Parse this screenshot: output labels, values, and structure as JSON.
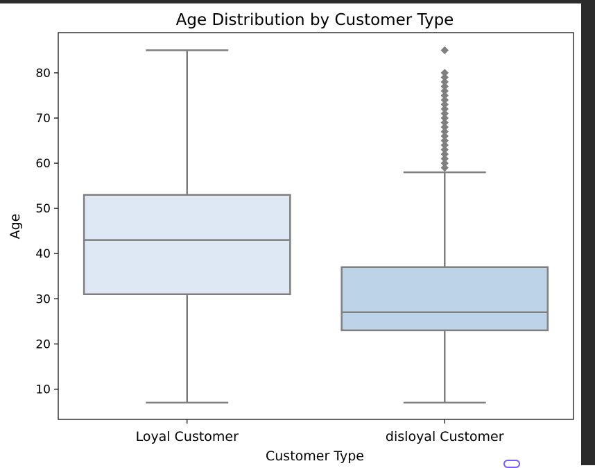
{
  "chart_data": {
    "type": "box",
    "title": "Age Distribution by Customer Type",
    "xlabel": "Customer Type",
    "ylabel": "Age",
    "ylim": [
      3.3,
      88.9
    ],
    "yticks": [
      10,
      20,
      30,
      40,
      50,
      60,
      70,
      80
    ],
    "grid": false,
    "categories": [
      "Loyal Customer",
      "disloyal Customer"
    ],
    "boxes": [
      {
        "category": "Loyal Customer",
        "whisker_low": 7,
        "q1": 31,
        "median": 43,
        "q3": 53,
        "whisker_high": 85,
        "outliers": [],
        "color": "#dde8f4"
      },
      {
        "category": "disloyal Customer",
        "whisker_low": 7,
        "q1": 23,
        "median": 27,
        "q3": 37,
        "whisker_high": 58,
        "outliers": [
          59,
          60,
          61,
          62,
          63,
          64,
          65,
          66,
          67,
          68,
          69,
          70,
          71,
          72,
          73,
          74,
          75,
          76,
          77,
          78,
          79,
          80,
          85
        ],
        "color": "#bdd4e8"
      }
    ],
    "colors": {
      "line": "#7f7f7f",
      "axis": "#000000"
    }
  }
}
